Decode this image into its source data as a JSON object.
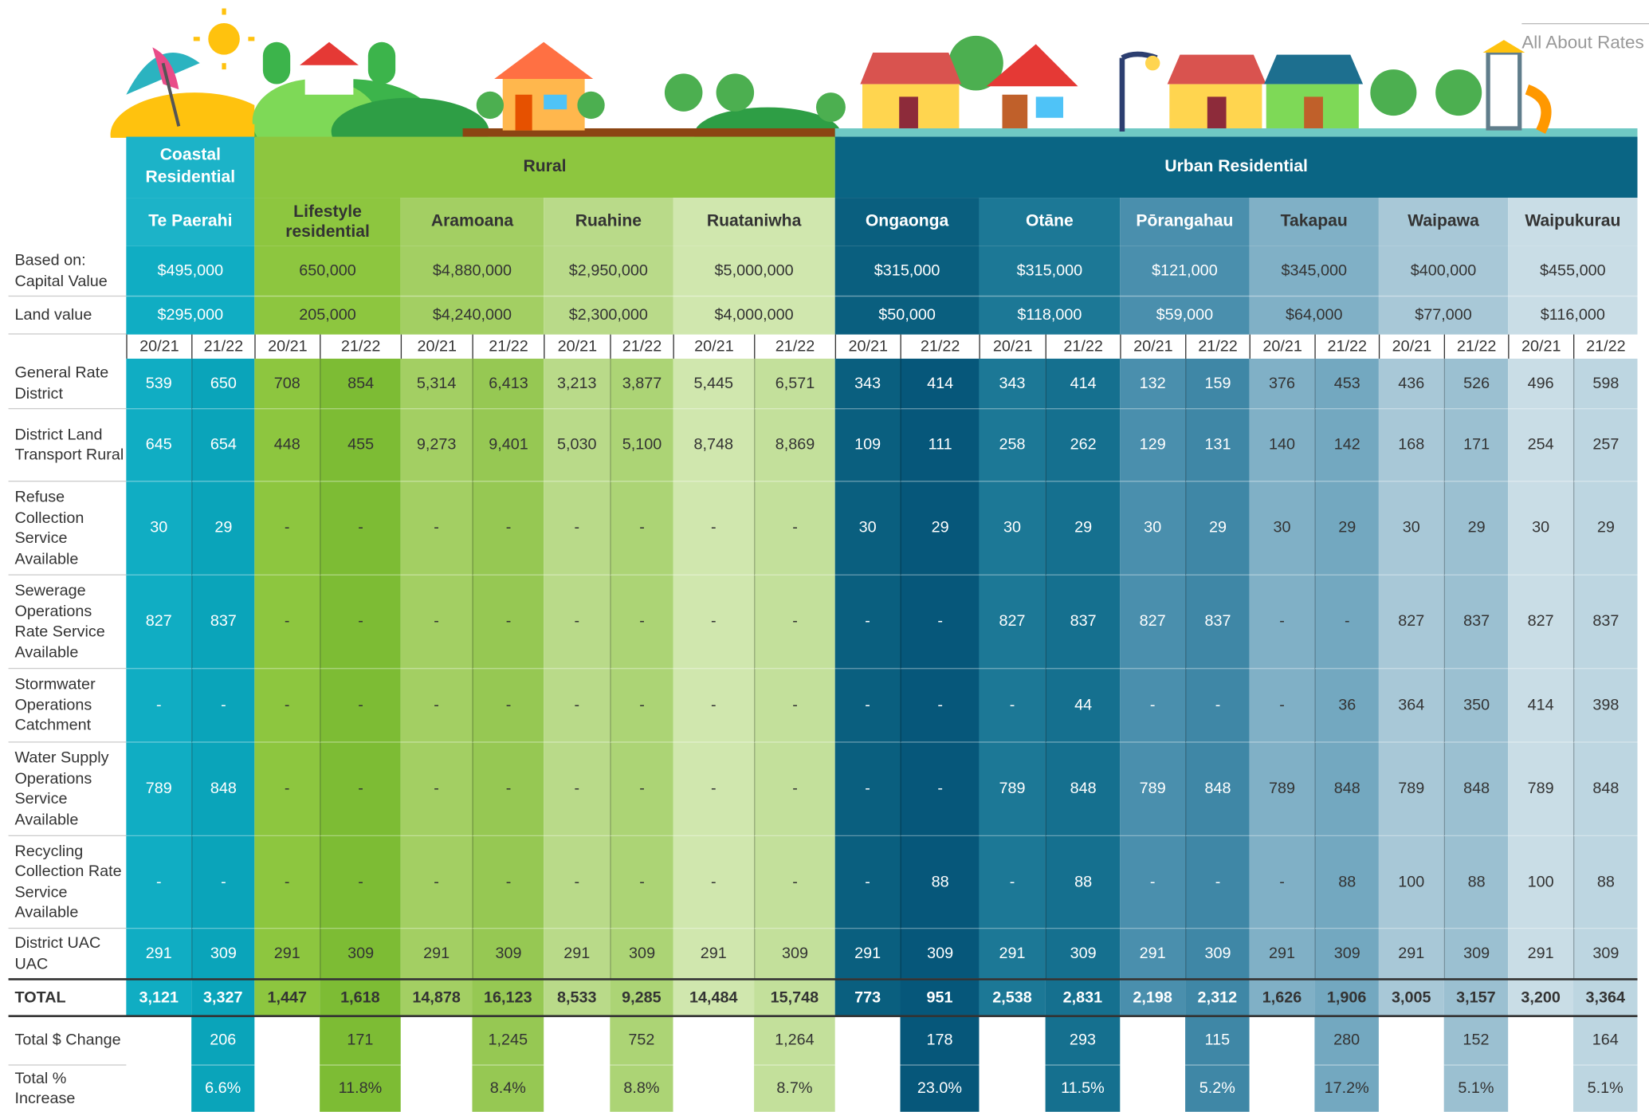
{
  "link": "All About Rates",
  "groups": [
    "Coastal Residential",
    "Rural",
    "Urban Residential"
  ],
  "row_labels": {
    "capital": "Based on: Capital Value",
    "land": "Land value"
  },
  "years": [
    "20/21",
    "21/22"
  ],
  "areas": [
    {
      "name": "Te Paerahi",
      "capital_value": "$495,000",
      "land_value": "$295,000"
    },
    {
      "name": "Lifestyle residential",
      "capital_value": "650,000",
      "land_value": "205,000"
    },
    {
      "name": "Aramoana",
      "capital_value": "$4,880,000",
      "land_value": "$4,240,000"
    },
    {
      "name": "Ruahine",
      "capital_value": "$2,950,000",
      "land_value": "$2,300,000"
    },
    {
      "name": "Ruataniwha",
      "capital_value": "$5,000,000",
      "land_value": "$4,000,000"
    },
    {
      "name": "Ongaonga",
      "capital_value": "$315,000",
      "land_value": "$50,000"
    },
    {
      "name": "Otāne",
      "capital_value": "$315,000",
      "land_value": "$118,000"
    },
    {
      "name": "Pōrangahau",
      "capital_value": "$121,000",
      "land_value": "$59,000"
    },
    {
      "name": "Takapau",
      "capital_value": "$345,000",
      "land_value": "$64,000"
    },
    {
      "name": "Waipawa",
      "capital_value": "$400,000",
      "land_value": "$77,000"
    },
    {
      "name": "Waipukurau",
      "capital_value": "$455,000",
      "land_value": "$116,000"
    }
  ],
  "rows": [
    {
      "label": "General Rate District",
      "values": [
        [
          "539",
          "650"
        ],
        [
          "708",
          "854"
        ],
        [
          "5,314",
          "6,413"
        ],
        [
          "3,213",
          "3,877"
        ],
        [
          "5,445",
          "6,571"
        ],
        [
          "343",
          "414"
        ],
        [
          "343",
          "414"
        ],
        [
          "132",
          "159"
        ],
        [
          "376",
          "453"
        ],
        [
          "436",
          "526"
        ],
        [
          "496",
          "598"
        ]
      ]
    },
    {
      "label": "District Land Transport Rural",
      "values": [
        [
          "645",
          "654"
        ],
        [
          "448",
          "455"
        ],
        [
          "9,273",
          "9,401"
        ],
        [
          "5,030",
          "5,100"
        ],
        [
          "8,748",
          "8,869"
        ],
        [
          "109",
          "111"
        ],
        [
          "258",
          "262"
        ],
        [
          "129",
          "131"
        ],
        [
          "140",
          "142"
        ],
        [
          "168",
          "171"
        ],
        [
          "254",
          "257"
        ]
      ]
    },
    {
      "label": "Refuse Collection Service Available",
      "values": [
        [
          "30",
          "29"
        ],
        [
          "-",
          "-"
        ],
        [
          "-",
          "-"
        ],
        [
          "-",
          "-"
        ],
        [
          "-",
          "-"
        ],
        [
          "30",
          "29"
        ],
        [
          "30",
          "29"
        ],
        [
          "30",
          "29"
        ],
        [
          "30",
          "29"
        ],
        [
          "30",
          "29"
        ],
        [
          "30",
          "29"
        ]
      ]
    },
    {
      "label": "Sewerage Operations Rate Service Available",
      "values": [
        [
          "827",
          "837"
        ],
        [
          "-",
          "-"
        ],
        [
          "-",
          "-"
        ],
        [
          "-",
          "-"
        ],
        [
          "-",
          "-"
        ],
        [
          "-",
          "-"
        ],
        [
          "827",
          "837"
        ],
        [
          "827",
          "837"
        ],
        [
          "-",
          "-"
        ],
        [
          "827",
          "837"
        ],
        [
          "827",
          "837"
        ]
      ]
    },
    {
      "label": "Stormwater Operations Catchment",
      "values": [
        [
          "-",
          "-"
        ],
        [
          "-",
          "-"
        ],
        [
          "-",
          "-"
        ],
        [
          "-",
          "-"
        ],
        [
          "-",
          "-"
        ],
        [
          "-",
          "-"
        ],
        [
          "-",
          "44"
        ],
        [
          "-",
          "-"
        ],
        [
          "-",
          "36"
        ],
        [
          "364",
          "350"
        ],
        [
          "414",
          "398"
        ]
      ]
    },
    {
      "label": "Water Supply Operations Service Available",
      "values": [
        [
          "789",
          "848"
        ],
        [
          "-",
          "-"
        ],
        [
          "-",
          "-"
        ],
        [
          "-",
          "-"
        ],
        [
          "-",
          "-"
        ],
        [
          "-",
          "-"
        ],
        [
          "789",
          "848"
        ],
        [
          "789",
          "848"
        ],
        [
          "789",
          "848"
        ],
        [
          "789",
          "848"
        ],
        [
          "789",
          "848"
        ]
      ]
    },
    {
      "label": "Recycling Collection Rate Service Available",
      "values": [
        [
          "-",
          "-"
        ],
        [
          "-",
          "-"
        ],
        [
          "-",
          "-"
        ],
        [
          "-",
          "-"
        ],
        [
          "-",
          "-"
        ],
        [
          "-",
          "88"
        ],
        [
          "-",
          "88"
        ],
        [
          "-",
          "-"
        ],
        [
          "-",
          "88"
        ],
        [
          "100",
          "88"
        ],
        [
          "100",
          "88"
        ]
      ]
    },
    {
      "label": "District UAC UAC",
      "values": [
        [
          "291",
          "309"
        ],
        [
          "291",
          "309"
        ],
        [
          "291",
          "309"
        ],
        [
          "291",
          "309"
        ],
        [
          "291",
          "309"
        ],
        [
          "291",
          "309"
        ],
        [
          "291",
          "309"
        ],
        [
          "291",
          "309"
        ],
        [
          "291",
          "309"
        ],
        [
          "291",
          "309"
        ],
        [
          "291",
          "309"
        ]
      ]
    }
  ],
  "total": {
    "label": "TOTAL",
    "values": [
      [
        "3,121",
        "3,327"
      ],
      [
        "1,447",
        "1,618"
      ],
      [
        "14,878",
        "16,123"
      ],
      [
        "8,533",
        "9,285"
      ],
      [
        "14,484",
        "15,748"
      ],
      [
        "773",
        "951"
      ],
      [
        "2,538",
        "2,831"
      ],
      [
        "2,198",
        "2,312"
      ],
      [
        "1,626",
        "1,906"
      ],
      [
        "3,005",
        "3,157"
      ],
      [
        "3,200",
        "3,364"
      ]
    ]
  },
  "change": {
    "label": "Total $ Change",
    "values": [
      "206",
      "171",
      "1,245",
      "752",
      "1,264",
      "178",
      "293",
      "115",
      "280",
      "152",
      "164"
    ]
  },
  "increase": {
    "label": "Total % Increase",
    "values": [
      "6.6%",
      "11.8%",
      "8.4%",
      "8.8%",
      "8.7%",
      "23.0%",
      "11.5%",
      "5.2%",
      "17.2%",
      "5.1%",
      "5.1%"
    ]
  }
}
